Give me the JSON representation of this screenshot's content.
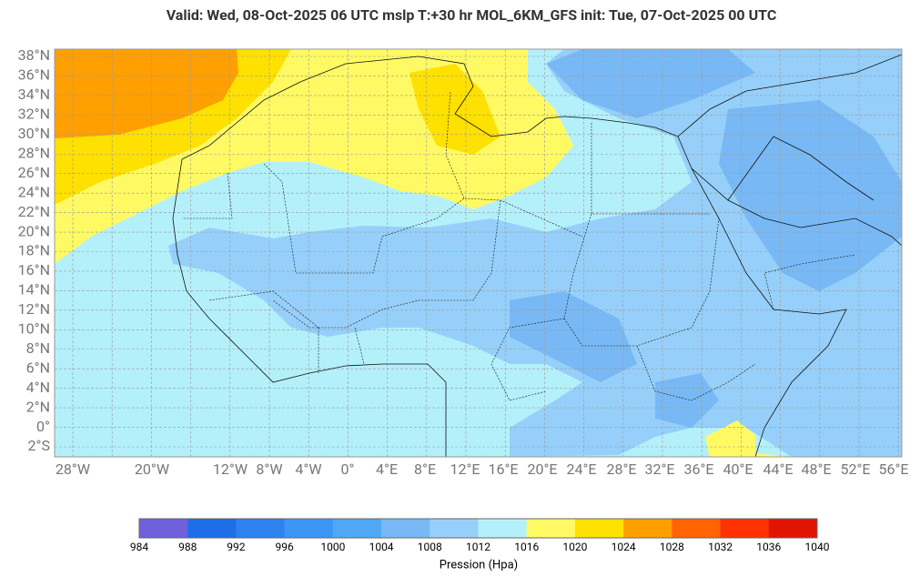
{
  "header": {
    "title": "Valid: Wed, 08-Oct-2025   06 UTC   mslp   T:+30 hr   MOL_6KM_GFS      init: Tue, 07-Oct-2025   00 UTC"
  },
  "map": {
    "lat_labels": [
      "38°N",
      "36°N",
      "34°N",
      "32°N",
      "30°N",
      "28°N",
      "26°N",
      "24°N",
      "22°N",
      "20°N",
      "18°N",
      "16°N",
      "14°N",
      "12°N",
      "10°N",
      "8°N",
      "6°N",
      "4°N",
      "2°N",
      "0°",
      "2°S"
    ],
    "lon_labels": [
      "28°W",
      "20°W",
      "12°W",
      "8°W",
      "4°W",
      "0°",
      "4°E",
      "8°E",
      "12°E",
      "16°E",
      "20°E",
      "24°E",
      "28°E",
      "32°E",
      "36°E",
      "40°E",
      "44°E",
      "48°E",
      "52°E",
      "56°E"
    ]
  },
  "colorbar": {
    "levels": [
      984,
      988,
      992,
      996,
      1000,
      1004,
      1008,
      1012,
      1016,
      1020,
      1024,
      1028,
      1032,
      1036,
      1040
    ],
    "colors": [
      "#7060dc",
      "#1e6ee8",
      "#2d82f0",
      "#3c96f5",
      "#50a8f5",
      "#78b9f5",
      "#96d0fa",
      "#b4f0fa",
      "#fffa64",
      "#ffe100",
      "#ffa000",
      "#ff6400",
      "#ff3200",
      "#e11400"
    ],
    "label": "Pression (Hpa)"
  }
}
